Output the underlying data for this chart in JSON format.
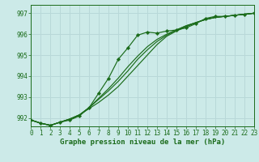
{
  "title": "Graphe pression niveau de la mer (hPa)",
  "bg_color": "#cceae8",
  "grid_color": "#b8d8d8",
  "line_color": "#1a6b1a",
  "marker_color": "#1a6b1a",
  "ylim": [
    991.6,
    997.4
  ],
  "xlim": [
    0,
    23
  ],
  "yticks": [
    992,
    993,
    994,
    995,
    996,
    997
  ],
  "xtick_labels": [
    "0",
    "1",
    "2",
    "3",
    "4",
    "5",
    "6",
    "7",
    "8",
    "9",
    "10",
    "11",
    "12",
    "13",
    "14",
    "15",
    "16",
    "17",
    "18",
    "19",
    "20",
    "21",
    "22",
    "23"
  ],
  "series": [
    [
      991.9,
      991.75,
      991.65,
      991.8,
      991.9,
      992.1,
      992.5,
      993.2,
      993.9,
      994.8,
      995.35,
      995.95,
      996.1,
      996.05,
      996.15,
      996.2,
      996.3,
      996.5,
      996.75,
      996.85,
      996.85,
      996.9,
      996.95,
      997.0
    ],
    [
      991.9,
      991.75,
      991.65,
      991.8,
      991.95,
      992.15,
      992.45,
      992.75,
      993.1,
      993.5,
      994.0,
      994.5,
      995.0,
      995.5,
      995.9,
      996.15,
      996.35,
      996.55,
      996.7,
      996.8,
      996.85,
      996.9,
      996.95,
      997.0
    ],
    [
      991.9,
      991.75,
      991.65,
      991.8,
      991.95,
      992.15,
      992.5,
      992.9,
      993.3,
      993.75,
      994.25,
      994.8,
      995.25,
      995.65,
      995.95,
      996.2,
      996.4,
      996.55,
      996.7,
      996.8,
      996.85,
      996.9,
      996.95,
      997.0
    ],
    [
      991.9,
      991.75,
      991.65,
      991.8,
      991.95,
      992.15,
      992.5,
      992.95,
      993.4,
      993.9,
      994.45,
      994.95,
      995.4,
      995.75,
      996.0,
      996.2,
      996.4,
      996.55,
      996.7,
      996.8,
      996.85,
      996.9,
      996.95,
      997.0
    ]
  ],
  "marker_series": 0
}
